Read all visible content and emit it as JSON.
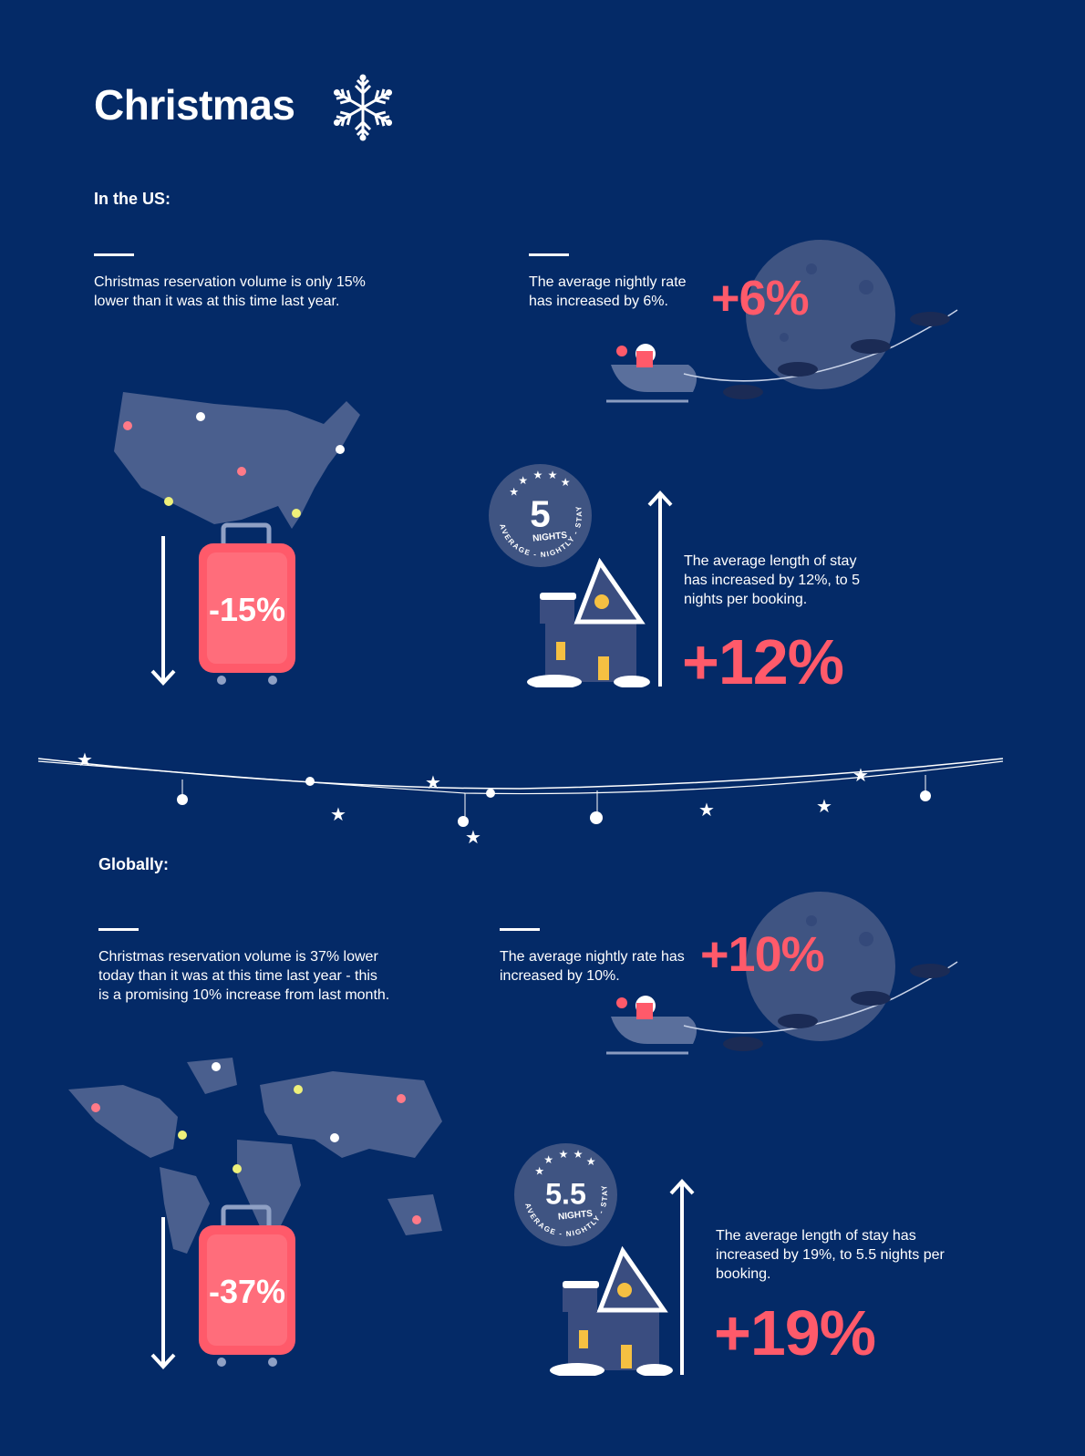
{
  "title": "Christmas",
  "colors": {
    "background": "#042a67",
    "accent": "#ff5a6a",
    "moon": "#3f5482",
    "illustration": "#4a5f8e"
  },
  "icons": [
    "snowflake-icon",
    "moon",
    "santa-sleigh",
    "reindeer",
    "map",
    "suitcase",
    "house",
    "arrow-down-icon",
    "arrow-up-icon",
    "star-icon",
    "garland"
  ],
  "us": {
    "heading": "In the US:",
    "volume_text": "Christmas reservation volume is only 15% lower than it was at this time last year.",
    "volume_value": "-15%",
    "rate_text": "The average nightly rate has increased by 6%.",
    "rate_value": "+6%",
    "badge": {
      "number": "5",
      "unit": "NIGHTS",
      "arc": "AVERAGE - NIGHTLY - STAY"
    },
    "stay_text": "The average length of stay has increased by 12%, to 5 nights per booking.",
    "stay_value": "+12%"
  },
  "global": {
    "heading": "Globally:",
    "volume_text": "Christmas reservation volume is 37% lower today than it was at this time last year - this is a promising 10% increase from last month.",
    "volume_value": "-37%",
    "rate_text": "The average nightly rate has increased by 10%.",
    "rate_value": "+10%",
    "badge": {
      "number": "5.5",
      "unit": "NIGHTS",
      "arc": "AVERAGE - NIGHTLY - STAY"
    },
    "stay_text": "The average length of stay has increased by 19%, to 5.5 nights per booking.",
    "stay_value": "+19%"
  }
}
